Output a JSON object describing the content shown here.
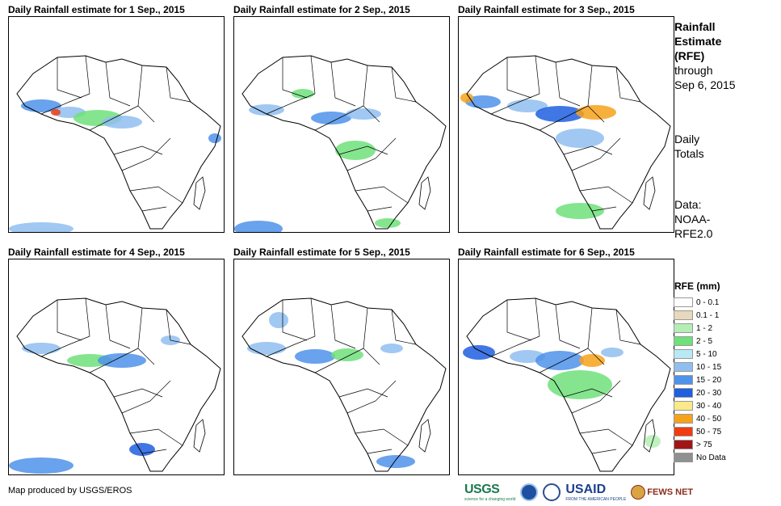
{
  "panels": [
    {
      "title": "Daily Rainfall estimate for 1 Sep., 2015"
    },
    {
      "title": "Daily Rainfall estimate for 2 Sep., 2015"
    },
    {
      "title": "Daily Rainfall estimate for 3 Sep., 2015"
    },
    {
      "title": "Daily Rainfall estimate for 4 Sep., 2015"
    },
    {
      "title": "Daily Rainfall estimate for 5 Sep., 2015"
    },
    {
      "title": "Daily Rainfall estimate for 6 Sep., 2015"
    }
  ],
  "side": {
    "title_line1": "Rainfall",
    "title_line2": "Estimate",
    "title_line3": "(RFE)",
    "through": "through",
    "date": "Sep 6, 2015",
    "daily": "Daily",
    "totals": "Totals",
    "data_label": "Data:",
    "data_src1": "NOAA-",
    "data_src2": "RFE2.0"
  },
  "legend": {
    "title": "RFE (mm)",
    "items": [
      {
        "label": "0 - 0.1",
        "color": "#ffffff"
      },
      {
        "label": "0.1 - 1",
        "color": "#e8d8bc"
      },
      {
        "label": "1 - 2",
        "color": "#b4eeb4"
      },
      {
        "label": "2 - 5",
        "color": "#6fe07a"
      },
      {
        "label": "5 - 10",
        "color": "#b8eaf5"
      },
      {
        "label": "10 - 15",
        "color": "#8fbef0"
      },
      {
        "label": "15 - 20",
        "color": "#4f92ea"
      },
      {
        "label": "20 - 30",
        "color": "#1f5fe0"
      },
      {
        "label": "30 - 40",
        "color": "#fbe98a"
      },
      {
        "label": "40 - 50",
        "color": "#f7a21b"
      },
      {
        "label": "50 - 75",
        "color": "#f03c12"
      },
      {
        "label": "> 75",
        "color": "#a01616"
      },
      {
        "label": "No Data",
        "color": "#909090"
      }
    ]
  },
  "footer": {
    "credit": "Map produced by USGS/EROS"
  },
  "logos": {
    "usgs": "USGS",
    "usgs_sub": "science for a changing world",
    "usaid": "USAID",
    "usaid_sub": "FROM THE AMERICAN PEOPLE",
    "fews": "FEWS NET"
  }
}
